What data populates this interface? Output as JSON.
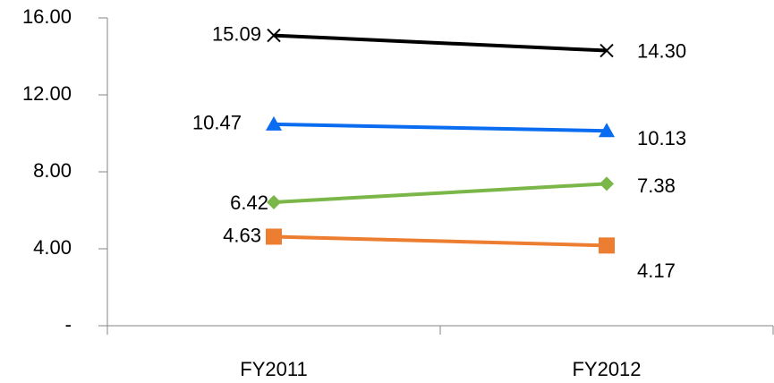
{
  "chart_data": {
    "type": "line",
    "categories": [
      "FY2011",
      "FY2012"
    ],
    "series": [
      {
        "color": "#000000",
        "marker": "cross",
        "values": [
          15.09,
          14.3
        ],
        "value_labels": [
          "15.09",
          "14.30"
        ]
      },
      {
        "color": "#0a6cf0",
        "marker": "triangle",
        "values": [
          10.47,
          10.13
        ],
        "value_labels": [
          "10.47",
          "10.13"
        ]
      },
      {
        "color": "#7ab648",
        "marker": "diamond",
        "values": [
          6.42,
          7.38
        ],
        "value_labels": [
          "6.42",
          "7.38"
        ]
      },
      {
        "color": "#ed7d31",
        "marker": "square",
        "values": [
          4.63,
          4.17
        ],
        "value_labels": [
          "4.63",
          "4.17"
        ]
      }
    ],
    "ylim": [
      0,
      16
    ],
    "yticks": [
      {
        "value": 0,
        "label": "-"
      },
      {
        "value": 4,
        "label": "4.00"
      },
      {
        "value": 8,
        "label": "8.00"
      },
      {
        "value": 12,
        "label": "12.00"
      },
      {
        "value": 16,
        "label": "16.00"
      }
    ],
    "grid": false
  }
}
